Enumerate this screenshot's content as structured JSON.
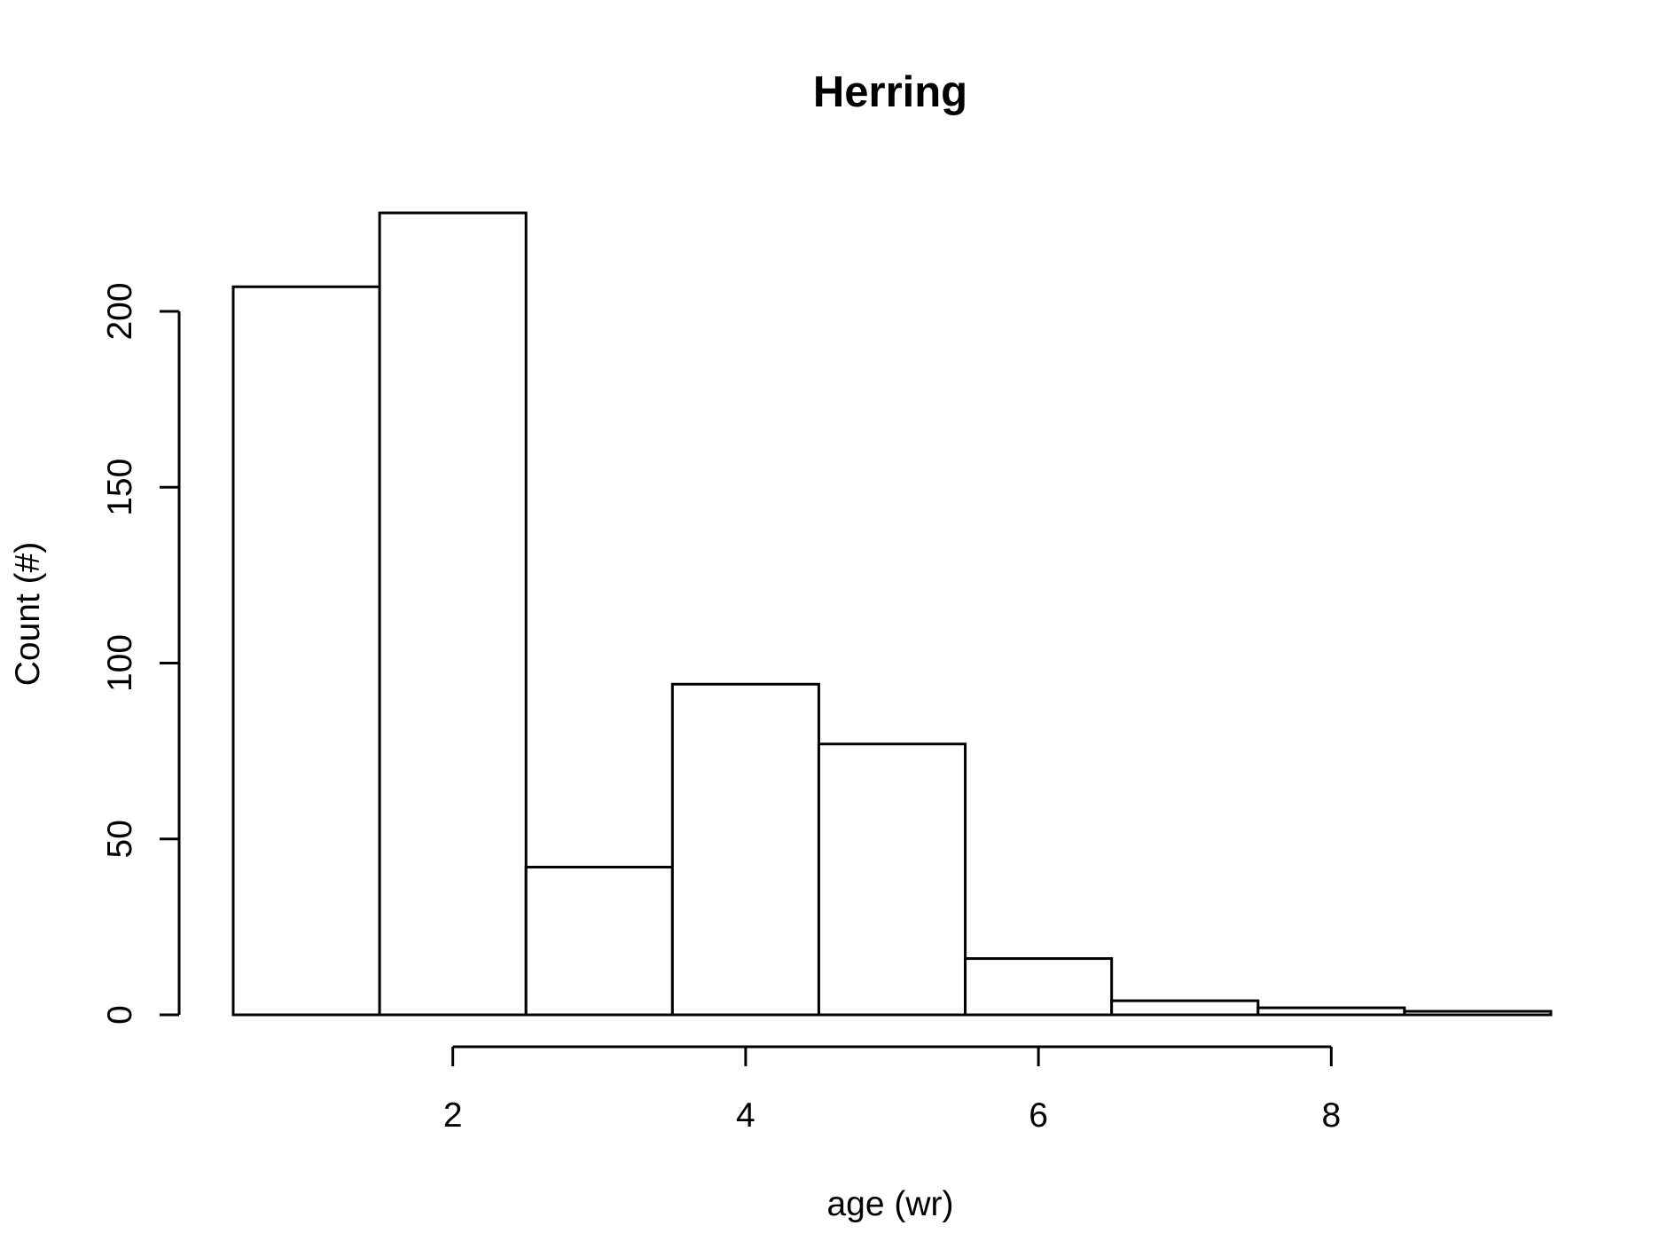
{
  "chart_data": {
    "type": "bar",
    "title": "Herring",
    "xlabel": "age (wr)",
    "ylabel": "Count (#)",
    "bins": [
      {
        "from": 0.5,
        "to": 1.5,
        "count": 207
      },
      {
        "from": 1.5,
        "to": 2.5,
        "count": 228
      },
      {
        "from": 2.5,
        "to": 3.5,
        "count": 42
      },
      {
        "from": 3.5,
        "to": 4.5,
        "count": 94
      },
      {
        "from": 4.5,
        "to": 5.5,
        "count": 77
      },
      {
        "from": 5.5,
        "to": 6.5,
        "count": 16
      },
      {
        "from": 6.5,
        "to": 7.5,
        "count": 4
      },
      {
        "from": 7.5,
        "to": 8.5,
        "count": 2
      },
      {
        "from": 8.5,
        "to": 9.5,
        "count": 1
      }
    ],
    "xlim": [
      0.5,
      9.5
    ],
    "ylim": [
      0,
      228
    ],
    "x_ticks": [
      2,
      4,
      6,
      8
    ],
    "y_ticks": [
      0,
      50,
      100,
      150,
      200
    ],
    "grid": false,
    "colors": {
      "bar_fill": "#ffffff",
      "bar_stroke": "#000000"
    }
  }
}
